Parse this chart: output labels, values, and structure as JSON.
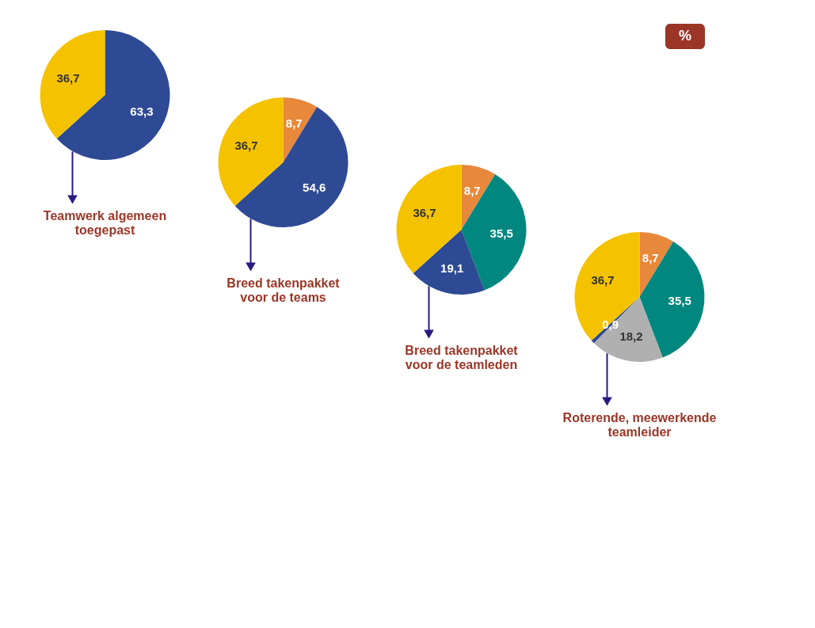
{
  "chart_data": [
    {
      "type": "pie",
      "title": "Teamwerk algemeen\ntoegepast",
      "categories": [
        null,
        null
      ],
      "values": [
        63.3,
        36.7
      ],
      "colors": [
        "#2e4a94",
        "#f5c200"
      ],
      "value_labels": [
        "63,3",
        "36,7"
      ]
    },
    {
      "type": "pie",
      "title": "Breed takenpakket\nvoor de teams",
      "categories": [
        null,
        null,
        null
      ],
      "values": [
        8.7,
        54.6,
        36.7
      ],
      "colors": [
        "#e8883a",
        "#2e4a94",
        "#f5c200"
      ],
      "value_labels": [
        "8,7",
        "54,6",
        "36,7"
      ]
    },
    {
      "type": "pie",
      "title": "Breed takenpakket\nvoor de teamleden",
      "categories": [
        null,
        null,
        null,
        null
      ],
      "values": [
        8.7,
        35.5,
        19.1,
        36.7
      ],
      "colors": [
        "#e8883a",
        "#00877f",
        "#2e4a94",
        "#f5c200"
      ],
      "value_labels": [
        "8,7",
        "35,5",
        "19,1",
        "36,7"
      ]
    },
    {
      "type": "pie",
      "title": "Roterende, meewerkende\nteamleider",
      "categories": [
        null,
        null,
        null,
        null,
        null
      ],
      "values": [
        8.7,
        35.5,
        18.2,
        0.9,
        36.7
      ],
      "colors": [
        "#e8883a",
        "#00877f",
        "#b0b0b0",
        "#2e4a94",
        "#f5c200"
      ],
      "value_labels": [
        "8,7",
        "35,5",
        "18,2",
        "0,9",
        "36,7"
      ],
      "annotations": [
        "%"
      ]
    }
  ]
}
